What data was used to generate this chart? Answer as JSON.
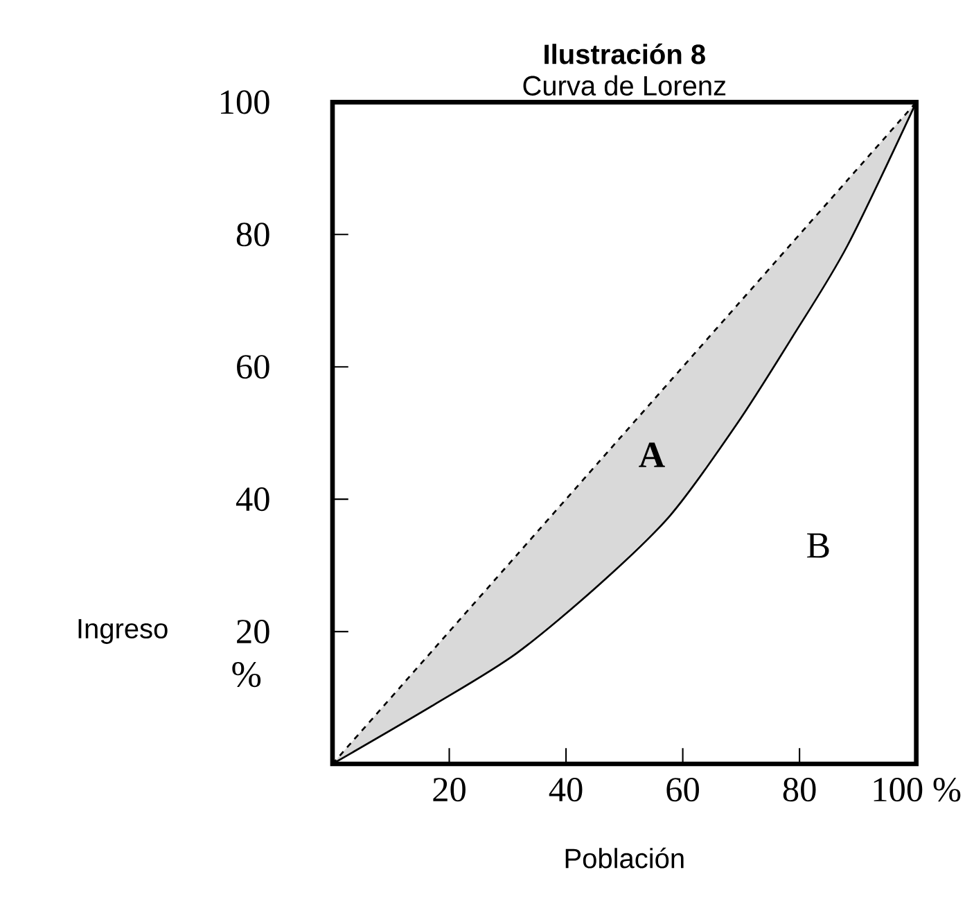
{
  "chart_data": {
    "type": "line",
    "title": "Ilustración 8",
    "subtitle": "Curva de Lorenz",
    "xlabel": "Población",
    "ylabel": "Ingreso",
    "x": [
      0,
      17.3,
      31.5,
      45.7,
      57.9,
      69.3,
      78.7,
      88.2,
      100
    ],
    "series": [
      {
        "values": [
          0,
          8.9,
          16.7,
          27.1,
          37.6,
          51.4,
          64.4,
          78.3,
          100
        ],
        "color": "#000000",
        "line_style": "solid"
      },
      {
        "values": [
          0,
          17.3,
          31.5,
          45.7,
          57.9,
          69.3,
          78.7,
          88.2,
          100
        ],
        "color": "#000000",
        "line_style": "dashed",
        "lower": [
          0,
          8.9,
          16.7,
          27.1,
          37.6,
          51.4,
          64.4,
          78.3,
          100
        ],
        "upper": [
          0,
          17.3,
          31.5,
          45.7,
          57.9,
          69.3,
          78.7,
          88.2,
          100
        ]
      }
    ],
    "xlim": [
      0,
      100
    ],
    "ylim": [
      0,
      100
    ],
    "xticks": [
      20,
      40,
      60,
      80,
      {
        "value": 100,
        "label": "100 %"
      }
    ],
    "yticks": [
      20,
      40,
      60,
      80,
      100
    ],
    "annotations": [
      "A",
      "B",
      "%"
    ],
    "grid": false,
    "marker": "none"
  }
}
